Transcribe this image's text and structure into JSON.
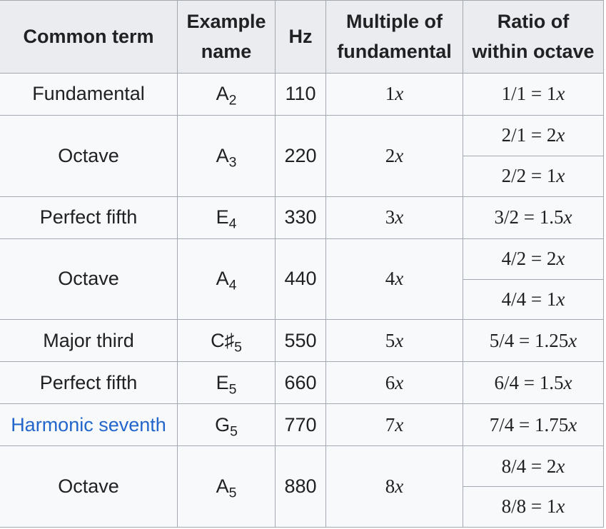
{
  "table": {
    "headers": [
      "Common term",
      "Example name",
      "Hz",
      "Multiple of fundamental",
      "Ratio of within octave"
    ],
    "rows": [
      {
        "term": "Fundamental",
        "is_link": false,
        "note": {
          "base": "A",
          "sub": "2"
        },
        "hz": "110",
        "multiple": "1x",
        "ratios": [
          "1/1 = 1x"
        ]
      },
      {
        "term": "Octave",
        "is_link": false,
        "note": {
          "base": "A",
          "sub": "3"
        },
        "hz": "220",
        "multiple": "2x",
        "ratios": [
          "2/1 = 2x",
          "2/2 = 1x"
        ]
      },
      {
        "term": "Perfect fifth",
        "is_link": false,
        "note": {
          "base": "E",
          "sub": "4"
        },
        "hz": "330",
        "multiple": "3x",
        "ratios": [
          "3/2 = 1.5x"
        ]
      },
      {
        "term": "Octave",
        "is_link": false,
        "note": {
          "base": "A",
          "sub": "4"
        },
        "hz": "440",
        "multiple": "4x",
        "ratios": [
          "4/2 = 2x",
          "4/4 = 1x"
        ]
      },
      {
        "term": "Major third",
        "is_link": false,
        "note": {
          "base": "C♯",
          "sub": "5"
        },
        "hz": "550",
        "multiple": "5x",
        "ratios": [
          "5/4 = 1.25x"
        ]
      },
      {
        "term": "Perfect fifth",
        "is_link": false,
        "note": {
          "base": "E",
          "sub": "5"
        },
        "hz": "660",
        "multiple": "6x",
        "ratios": [
          "6/4 = 1.5x"
        ]
      },
      {
        "term": "Harmonic seventh",
        "is_link": true,
        "note": {
          "base": "G",
          "sub": "5"
        },
        "hz": "770",
        "multiple": "7x",
        "ratios": [
          "7/4 = 1.75x"
        ]
      },
      {
        "term": "Octave",
        "is_link": false,
        "note": {
          "base": "A",
          "sub": "5"
        },
        "hz": "880",
        "multiple": "8x",
        "ratios": [
          "8/4 = 2x",
          "8/8 = 1x"
        ]
      }
    ]
  },
  "colors": {
    "header_background": "#eaecf0",
    "row_background": "#f8f9fa",
    "border": "#a2a9b1",
    "text": "#202122",
    "link": "#2266cc"
  }
}
